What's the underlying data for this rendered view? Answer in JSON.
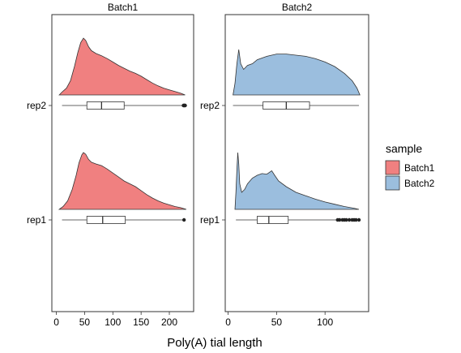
{
  "chart_data": {
    "type": "violin",
    "xlabel": "Poly(A) tial length",
    "rows": [
      "rep2",
      "rep1"
    ],
    "legend": {
      "title": "sample",
      "position": "right",
      "entries": [
        {
          "label": "Batch1",
          "color": "#F08080"
        },
        {
          "label": "Batch2",
          "color": "#9BBEDE"
        }
      ]
    },
    "panels": [
      {
        "title": "Batch1",
        "xlim": [
          -8,
          243
        ],
        "ticks": [
          0,
          50,
          100,
          150,
          200
        ],
        "tick_labels": [
          "0",
          "50",
          "100",
          "150",
          "200"
        ],
        "fill": "#F08080",
        "rows": [
          {
            "label": "rep2",
            "density": [
              [
                5,
                0
              ],
              [
                10,
                0.05
              ],
              [
                18,
                0.12
              ],
              [
                25,
                0.25
              ],
              [
                32,
                0.5
              ],
              [
                38,
                0.75
              ],
              [
                43,
                0.92
              ],
              [
                48,
                1.0
              ],
              [
                52,
                0.96
              ],
              [
                57,
                0.85
              ],
              [
                62,
                0.78
              ],
              [
                70,
                0.73
              ],
              [
                80,
                0.69
              ],
              [
                90,
                0.64
              ],
              [
                100,
                0.58
              ],
              [
                110,
                0.52
              ],
              [
                120,
                0.47
              ],
              [
                130,
                0.42
              ],
              [
                140,
                0.38
              ],
              [
                150,
                0.33
              ],
              [
                160,
                0.27
              ],
              [
                170,
                0.21
              ],
              [
                180,
                0.16
              ],
              [
                190,
                0.12
              ],
              [
                200,
                0.09
              ],
              [
                210,
                0.06
              ],
              [
                220,
                0.03
              ],
              [
                228,
                0
              ]
            ],
            "box": {
              "lower_whisker": 10,
              "q1": 54,
              "median": 80,
              "q3": 120,
              "upper_whisker": 225
            },
            "outliers": [
              225,
              226,
              227,
              228
            ]
          },
          {
            "label": "rep1",
            "density": [
              [
                5,
                0
              ],
              [
                12,
                0.05
              ],
              [
                20,
                0.15
              ],
              [
                28,
                0.35
              ],
              [
                35,
                0.6
              ],
              [
                40,
                0.82
              ],
              [
                45,
                0.96
              ],
              [
                48,
                1.0
              ],
              [
                52,
                0.97
              ],
              [
                57,
                0.88
              ],
              [
                62,
                0.83
              ],
              [
                70,
                0.8
              ],
              [
                80,
                0.77
              ],
              [
                90,
                0.71
              ],
              [
                100,
                0.64
              ],
              [
                110,
                0.57
              ],
              [
                120,
                0.5
              ],
              [
                130,
                0.45
              ],
              [
                140,
                0.4
              ],
              [
                150,
                0.33
              ],
              [
                160,
                0.26
              ],
              [
                170,
                0.2
              ],
              [
                180,
                0.15
              ],
              [
                190,
                0.11
              ],
              [
                200,
                0.08
              ],
              [
                210,
                0.05
              ],
              [
                220,
                0.03
              ],
              [
                230,
                0
              ]
            ],
            "box": {
              "lower_whisker": 10,
              "q1": 54,
              "median": 82,
              "q3": 122,
              "upper_whisker": 225
            },
            "outliers": [
              226
            ]
          }
        ]
      },
      {
        "title": "Batch2",
        "xlim": [
          -3,
          145
        ],
        "ticks": [
          0,
          50,
          100
        ],
        "tick_labels": [
          "0",
          "50",
          "100"
        ],
        "fill": "#9BBEDE",
        "rows": [
          {
            "label": "rep2",
            "density": [
              [
                5,
                0
              ],
              [
                7,
                0.2
              ],
              [
                9,
                0.55
              ],
              [
                11,
                0.8
              ],
              [
                13,
                0.55
              ],
              [
                16,
                0.45
              ],
              [
                20,
                0.52
              ],
              [
                25,
                0.55
              ],
              [
                30,
                0.62
              ],
              [
                40,
                0.68
              ],
              [
                50,
                0.72
              ],
              [
                60,
                0.72
              ],
              [
                70,
                0.7
              ],
              [
                80,
                0.68
              ],
              [
                90,
                0.64
              ],
              [
                100,
                0.58
              ],
              [
                110,
                0.5
              ],
              [
                120,
                0.38
              ],
              [
                128,
                0.25
              ],
              [
                133,
                0.12
              ],
              [
                136,
                0
              ]
            ],
            "box": {
              "lower_whisker": 5,
              "q1": 36,
              "median": 60,
              "q3": 84,
              "upper_whisker": 135
            },
            "outliers": []
          },
          {
            "label": "rep1",
            "density": [
              [
                7,
                0
              ],
              [
                8,
                0.3
              ],
              [
                9,
                0.7
              ],
              [
                10,
                1.0
              ],
              [
                11,
                0.8
              ],
              [
                12,
                0.45
              ],
              [
                14,
                0.3
              ],
              [
                17,
                0.35
              ],
              [
                20,
                0.45
              ],
              [
                25,
                0.55
              ],
              [
                30,
                0.6
              ],
              [
                35,
                0.63
              ],
              [
                40,
                0.62
              ],
              [
                45,
                0.68
              ],
              [
                48,
                0.6
              ],
              [
                52,
                0.5
              ],
              [
                60,
                0.4
              ],
              [
                70,
                0.3
              ],
              [
                80,
                0.24
              ],
              [
                90,
                0.18
              ],
              [
                100,
                0.13
              ],
              [
                110,
                0.09
              ],
              [
                120,
                0.05
              ],
              [
                130,
                0.02
              ],
              [
                135,
                0
              ]
            ],
            "box": {
              "lower_whisker": 8,
              "q1": 30,
              "median": 42,
              "q3": 62,
              "upper_whisker": 112
            },
            "outliers": [
              113,
              115,
              118,
              120,
              122,
              125,
              128,
              130,
              132,
              135
            ]
          }
        ]
      }
    ]
  }
}
